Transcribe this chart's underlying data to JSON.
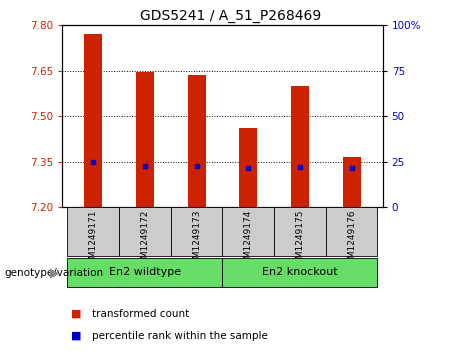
{
  "title": "GDS5241 / A_51_P268469",
  "samples": [
    "GSM1249171",
    "GSM1249172",
    "GSM1249173",
    "GSM1249174",
    "GSM1249175",
    "GSM1249176"
  ],
  "bar_tops": [
    7.77,
    7.645,
    7.635,
    7.46,
    7.6,
    7.365
  ],
  "bar_bottoms": [
    7.2,
    7.2,
    7.2,
    7.2,
    7.2,
    7.2
  ],
  "percentile_values": [
    7.348,
    7.336,
    7.336,
    7.328,
    7.332,
    7.328
  ],
  "ylim_left": [
    7.2,
    7.8
  ],
  "yticks_left": [
    7.2,
    7.35,
    7.5,
    7.65,
    7.8
  ],
  "yticks_right": [
    0,
    25,
    50,
    75,
    100
  ],
  "ylim_right": [
    0,
    100
  ],
  "bar_color": "#cc2200",
  "percentile_color": "#0000cc",
  "grid_lines": [
    7.35,
    7.5,
    7.65
  ],
  "group1_label": "En2 wildtype",
  "group2_label": "En2 knockout",
  "group1_indices": [
    0,
    1,
    2
  ],
  "group2_indices": [
    3,
    4,
    5
  ],
  "genotype_label": "genotype/variation",
  "legend_items": [
    "transformed count",
    "percentile rank within the sample"
  ],
  "group_color": "#66dd66",
  "sample_bg_color": "#cccccc",
  "bar_width": 0.35,
  "title_fontsize": 10,
  "tick_fontsize": 7.5,
  "left_tick_color": "#cc2200",
  "right_tick_color": "#0000cc"
}
